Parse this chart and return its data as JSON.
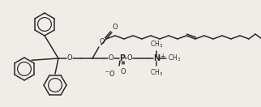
{
  "bg_color": "#f0ede8",
  "line_color": "#2a2a2a",
  "line_width": 1.1,
  "figsize": [
    3.22,
    1.32
  ],
  "dpi": 100,
  "xlim": [
    0,
    322
  ],
  "ylim": [
    0,
    132
  ]
}
